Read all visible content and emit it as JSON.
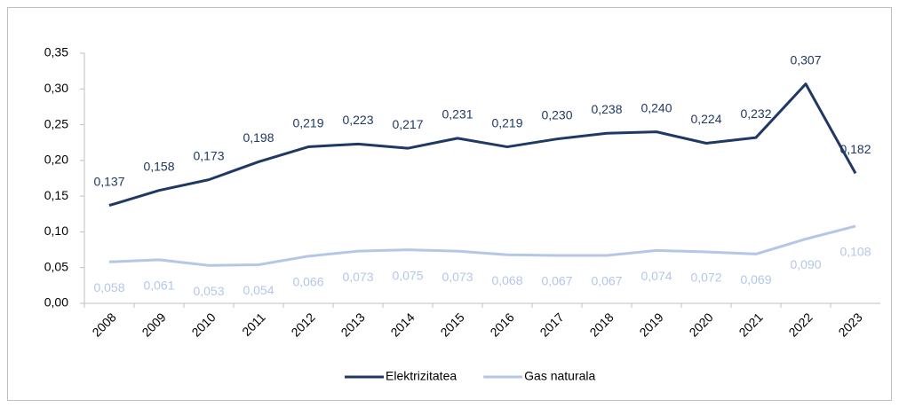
{
  "chart_data": {
    "type": "line",
    "categories": [
      "2008",
      "2009",
      "2010",
      "2011",
      "2012",
      "2013",
      "2014",
      "2015",
      "2016",
      "2017",
      "2018",
      "2019",
      "2020",
      "2021",
      "2022",
      "2023"
    ],
    "series": [
      {
        "name": "Elektrizitatea",
        "color": "#1f3864",
        "values": [
          0.137,
          0.158,
          0.173,
          0.198,
          0.219,
          0.223,
          0.217,
          0.231,
          0.219,
          0.23,
          0.238,
          0.24,
          0.224,
          0.232,
          0.307,
          0.182
        ],
        "value_labels": [
          "0,137",
          "0,158",
          "0,173",
          "0,198",
          "0,219",
          "0,223",
          "0,217",
          "0,231",
          "0,219",
          "0,230",
          "0,238",
          "0,240",
          "0,224",
          "0,232",
          "0,307",
          "0,182"
        ]
      },
      {
        "name": "Gas naturala",
        "color": "#b4c7e7",
        "values": [
          0.058,
          0.061,
          0.053,
          0.054,
          0.066,
          0.073,
          0.075,
          0.073,
          0.068,
          0.067,
          0.067,
          0.074,
          0.072,
          0.069,
          0.09,
          0.108
        ],
        "value_labels": [
          "0,058",
          "0,061",
          "0,053",
          "0,054",
          "0,066",
          "0,073",
          "0,075",
          "0,073",
          "0,068",
          "0,067",
          "0,067",
          "0,074",
          "0,072",
          "0,069",
          "0,090",
          "0,108"
        ]
      }
    ],
    "ylim": [
      0,
      0.35
    ],
    "yticks": [
      {
        "value": 0,
        "label": "0,00"
      },
      {
        "value": 0.05,
        "label": "0,05"
      },
      {
        "value": 0.1,
        "label": "0,10"
      },
      {
        "value": 0.15,
        "label": "0,15"
      },
      {
        "value": 0.2,
        "label": "0,20"
      },
      {
        "value": 0.25,
        "label": "0,25"
      },
      {
        "value": 0.3,
        "label": "0,30"
      },
      {
        "value": 0.35,
        "label": "0,35"
      }
    ],
    "legend": "bottom"
  }
}
